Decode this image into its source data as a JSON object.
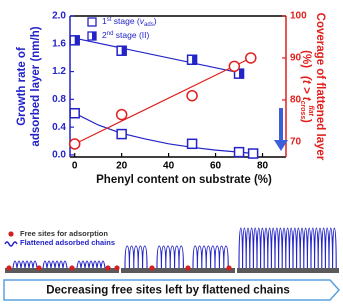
{
  "chart_data": {
    "type": "scatter",
    "xlabel": "Phenyl content on substrate (%)",
    "ylabel": [
      "Growth rate of",
      "adsorbed layer (nm/h)"
    ],
    "y2label": [
      "Coverage of flattened layer",
      "(%)",
      "(t > t",
      "cross",
      "flat",
      " )"
    ],
    "xlim": [
      -2,
      90
    ],
    "xticks": [
      0,
      20,
      40,
      60,
      80
    ],
    "ylim": [
      -0.03,
      2.0
    ],
    "yticks": [
      {
        "value": 0,
        "label": "0.0"
      },
      0.4,
      0.8,
      1.2,
      1.6,
      {
        "value": 2,
        "label": "2.0"
      }
    ],
    "y2lim": [
      66.4,
      100
    ],
    "y2ticks": [
      70,
      80,
      90,
      100
    ],
    "series": [
      {
        "name": [
          "1",
          "st",
          " stage (",
          "v",
          "ads",
          ")"
        ],
        "color": "#2323c8",
        "marker": "square-open",
        "x": [
          0,
          20,
          50,
          70,
          76
        ],
        "values": [
          0.6,
          0.3,
          0.16,
          0.04,
          0.02
        ],
        "fit_x": [
          0,
          10,
          20,
          30,
          40,
          50,
          60,
          70,
          76
        ],
        "fit": [
          0.6,
          0.43,
          0.31,
          0.23,
          0.16,
          0.11,
          0.07,
          0.04,
          0.02
        ]
      },
      {
        "name": [
          "2",
          "nd",
          " stage (",
          "II",
          ")"
        ],
        "color": "#2323c8",
        "marker": "square-half",
        "x": [
          0,
          20,
          50,
          70
        ],
        "values": [
          1.65,
          1.5,
          1.37,
          1.17
        ],
        "fit_x": [
          0,
          72
        ],
        "fit": [
          1.68,
          1.17
        ]
      },
      {
        "color": "#e0201e",
        "marker": "circle-open",
        "axis": "y2",
        "x": [
          0,
          20,
          50,
          68,
          75
        ],
        "values": [
          69.5,
          76.5,
          81,
          88,
          90
        ],
        "fit_x": [
          0,
          75
        ],
        "fit": [
          69.5,
          90
        ]
      }
    ]
  },
  "schematic": {
    "legend": [
      "Free sites for adsorption",
      "Flattened adsorbed chains"
    ],
    "banner": "Decreasing free sites left by flattened chains"
  }
}
